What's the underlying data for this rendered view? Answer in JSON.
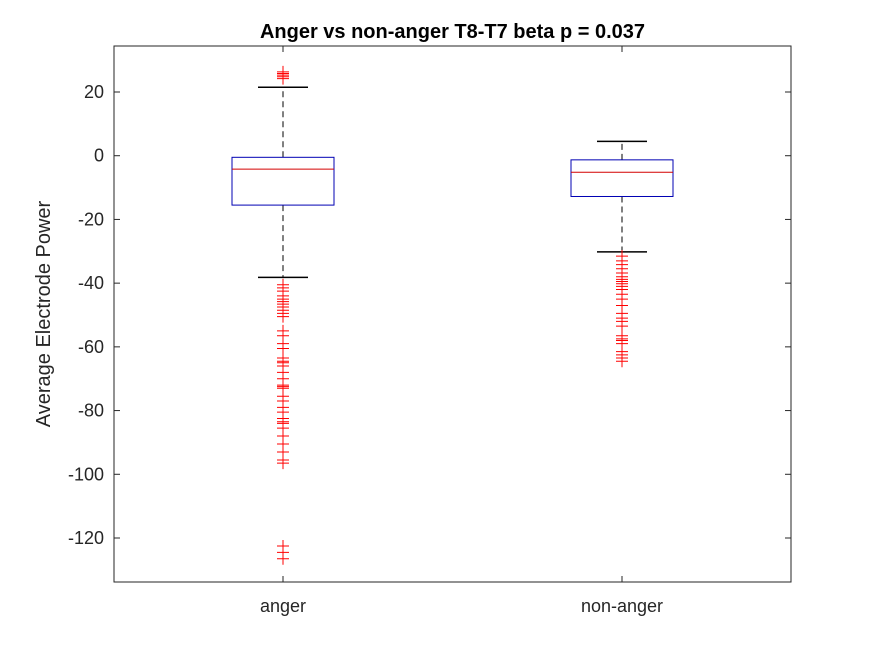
{
  "chart_data": {
    "type": "box",
    "title": "Anger vs non-anger T8-T7 beta p = 0.037",
    "xlabel": "",
    "ylabel": "Average Electrode Power",
    "ylim": [
      -135,
      32
    ],
    "yticks": [
      20,
      0,
      -20,
      -40,
      -60,
      -80,
      -100,
      -120
    ],
    "grid": false,
    "categories": [
      "anger",
      "non-anger"
    ],
    "boxes": [
      {
        "category": "anger",
        "q1": -15.5,
        "median": -4.2,
        "q3": -0.5,
        "whisker_low": -38.2,
        "whisker_high": 21.5,
        "outliers": [
          24.2,
          24.8,
          25.3,
          25.8,
          26.3,
          -40.5,
          -41.5,
          -42.5,
          -44.0,
          -45.0,
          -45.8,
          -46.6,
          -47.5,
          -48.5,
          -49.5,
          -50.5,
          -55.0,
          -56.5,
          -59.0,
          -60.5,
          -63.5,
          -64.5,
          -65.0,
          -66.0,
          -68.0,
          -70.0,
          -72.0,
          -72.5,
          -73.0,
          -75.5,
          -77.0,
          -79.0,
          -80.5,
          -82.5,
          -83.5,
          -84.0,
          -85.5,
          -88.0,
          -90.5,
          -93.0,
          -95.5,
          -96.5,
          -122.5,
          -124.5,
          -126.5
        ]
      },
      {
        "category": "non-anger",
        "q1": -12.8,
        "median": -5.2,
        "q3": -1.3,
        "whisker_low": -30.2,
        "whisker_high": 4.5,
        "outliers": [
          -31.5,
          -33.0,
          -34.2,
          -35.5,
          -36.8,
          -38.0,
          -38.8,
          -39.5,
          -40.2,
          -41.0,
          -42.0,
          -43.5,
          -45.0,
          -47.0,
          -49.5,
          -51.0,
          -52.0,
          -53.5,
          -56.5,
          -57.5,
          -58.0,
          -59.0,
          -61.5,
          -62.5,
          -63.5,
          -64.5
        ]
      }
    ],
    "colors": {
      "box": "#0000b3",
      "median": "#d40000",
      "whisker": "#000000",
      "outlier": "#ff0000",
      "axis": "#262626"
    }
  }
}
